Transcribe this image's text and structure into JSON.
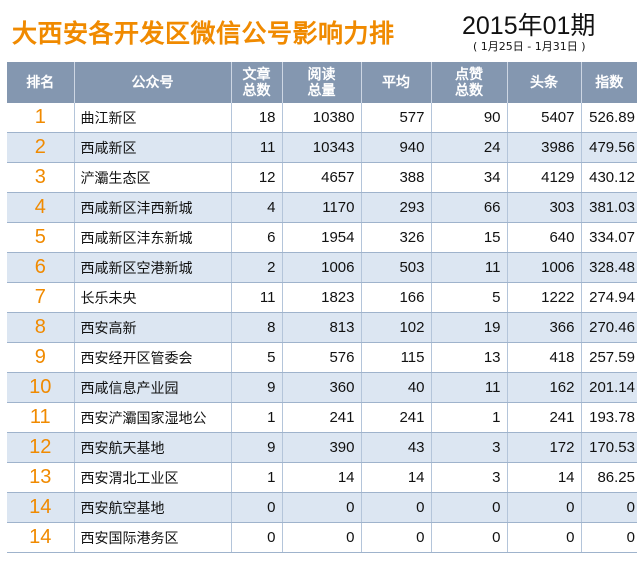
{
  "header": {
    "title": "大西安各开发区微信公号影响力排",
    "issue": "2015年01期",
    "date_range": "( 1月25日 - 1月31日 )"
  },
  "colors": {
    "accent": "#f08a00",
    "header_bg": "#8497b0",
    "stripe": "#dce6f2"
  },
  "table": {
    "columns": [
      {
        "line1": "排名",
        "line2": ""
      },
      {
        "line1": "公众号",
        "line2": ""
      },
      {
        "line1": "文章",
        "line2": "总数"
      },
      {
        "line1": "阅读",
        "line2": "总量"
      },
      {
        "line1": "平均",
        "line2": ""
      },
      {
        "line1": "点赞",
        "line2": "总数"
      },
      {
        "line1": "头条",
        "line2": ""
      },
      {
        "line1": "指数",
        "line2": ""
      }
    ],
    "rows": [
      [
        "1",
        "曲江新区",
        "18",
        "10380",
        "577",
        "90",
        "5407",
        "526.89"
      ],
      [
        "2",
        "西咸新区",
        "11",
        "10343",
        "940",
        "24",
        "3986",
        "479.56"
      ],
      [
        "3",
        "浐灞生态区",
        "12",
        "4657",
        "388",
        "34",
        "4129",
        "430.12"
      ],
      [
        "4",
        "西咸新区沣西新城",
        "4",
        "1170",
        "293",
        "66",
        "303",
        "381.03"
      ],
      [
        "5",
        "西咸新区沣东新城",
        "6",
        "1954",
        "326",
        "15",
        "640",
        "334.07"
      ],
      [
        "6",
        "西咸新区空港新城",
        "2",
        "1006",
        "503",
        "11",
        "1006",
        "328.48"
      ],
      [
        "7",
        "长乐未央",
        "11",
        "1823",
        "166",
        "5",
        "1222",
        "274.94"
      ],
      [
        "8",
        "西安高新",
        "8",
        "813",
        "102",
        "19",
        "366",
        "270.46"
      ],
      [
        "9",
        "西安经开区管委会",
        "5",
        "576",
        "115",
        "13",
        "418",
        "257.59"
      ],
      [
        "10",
        "西咸信息产业园",
        "9",
        "360",
        "40",
        "11",
        "162",
        "201.14"
      ],
      [
        "11",
        "西安浐灞国家湿地公",
        "1",
        "241",
        "241",
        "1",
        "241",
        "193.78"
      ],
      [
        "12",
        "西安航天基地",
        "9",
        "390",
        "43",
        "3",
        "172",
        "170.53"
      ],
      [
        "13",
        "西安渭北工业区",
        "1",
        "14",
        "14",
        "3",
        "14",
        "86.25"
      ],
      [
        "14",
        "西安航空基地",
        "0",
        "0",
        "0",
        "0",
        "0",
        "0"
      ],
      [
        "14",
        "西安国际港务区",
        "0",
        "0",
        "0",
        "0",
        "0",
        "0"
      ]
    ]
  }
}
